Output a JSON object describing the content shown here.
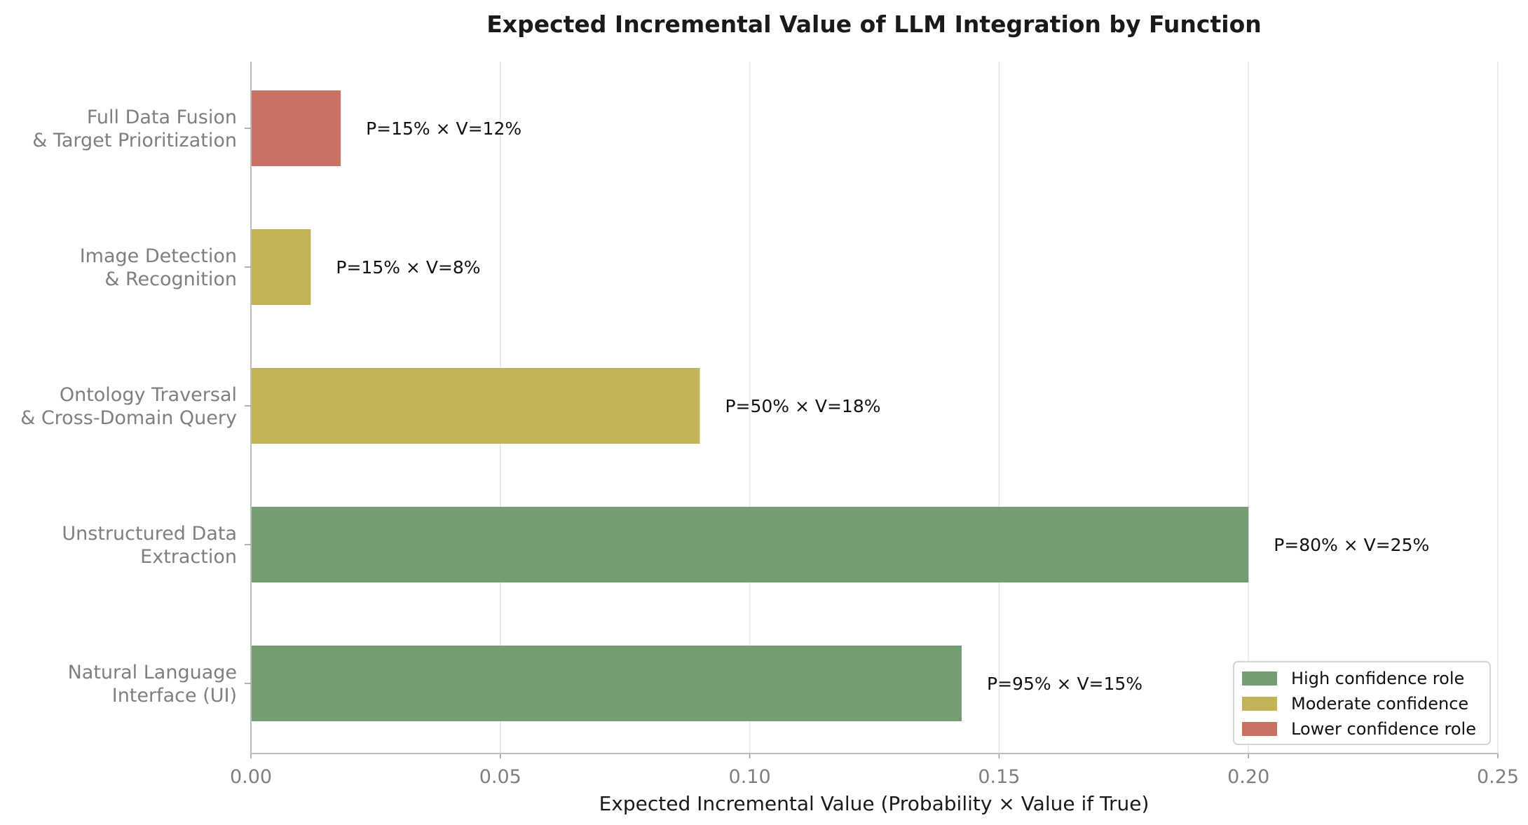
{
  "chart_data": {
    "type": "bar",
    "orientation": "horizontal",
    "title": "Expected Incremental Value of LLM Integration by Function",
    "xlabel": "Expected Incremental Value (Probability × Value if True)",
    "ylabel": "",
    "xlim": [
      0,
      0.25
    ],
    "xticks": [
      "0.00",
      "0.05",
      "0.10",
      "0.15",
      "0.20",
      "0.25"
    ],
    "grid": "vertical",
    "legend_position": "lower-right",
    "categories": [
      [
        "Natural Language",
        "Interface (UI)"
      ],
      [
        "Unstructured Data",
        "Extraction"
      ],
      [
        "Ontology Traversal",
        "& Cross-Domain Query"
      ],
      [
        "Image Detection",
        "& Recognition"
      ],
      [
        "Full Data Fusion",
        "& Target Prioritization"
      ]
    ],
    "values": [
      0.1425,
      0.2,
      0.09,
      0.012,
      0.018
    ],
    "labels": [
      "P=95% × V=15%",
      "P=80% × V=25%",
      "P=50% × V=18%",
      "P=15% × V=8%",
      "P=15% × V=12%"
    ],
    "confidence": [
      "high",
      "high",
      "moderate",
      "moderate",
      "lower"
    ],
    "legend": [
      {
        "key": "high",
        "label": "High confidence role",
        "color": "#739d73"
      },
      {
        "key": "moderate",
        "label": "Moderate confidence",
        "color": "#c2b358"
      },
      {
        "key": "lower",
        "label": "Lower confidence role",
        "color": "#c97162"
      }
    ]
  }
}
